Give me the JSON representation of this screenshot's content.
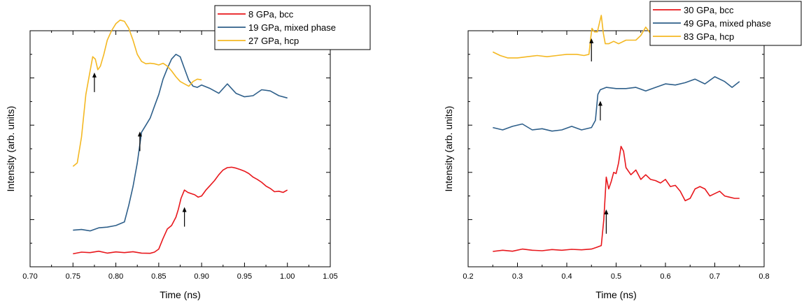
{
  "chart_data": [
    {
      "type": "line",
      "xlabel": "Time (ns)",
      "ylabel": "Intensity (arb. units)",
      "xlim": [
        0.7,
        1.05
      ],
      "ylim": [
        0,
        10
      ],
      "xticks": [
        "0.70",
        "0.75",
        "0.80",
        "0.85",
        "0.90",
        "0.95",
        "1.00",
        "1.05"
      ],
      "y_tick_labels_shown": false,
      "legend_position": "top-right",
      "series": [
        {
          "name": "8 GPa, bcc",
          "color": "#e8171c",
          "x": [
            0.75,
            0.76,
            0.77,
            0.78,
            0.79,
            0.8,
            0.81,
            0.82,
            0.83,
            0.84,
            0.845,
            0.85,
            0.855,
            0.86,
            0.865,
            0.87,
            0.873,
            0.876,
            0.88,
            0.884,
            0.888,
            0.892,
            0.896,
            0.9,
            0.905,
            0.91,
            0.915,
            0.92,
            0.925,
            0.93,
            0.935,
            0.94,
            0.945,
            0.95,
            0.955,
            0.96,
            0.965,
            0.97,
            0.975,
            0.98,
            0.985,
            0.99,
            0.995,
            1.0
          ],
          "y": [
            0.55,
            0.62,
            0.6,
            0.66,
            0.58,
            0.63,
            0.6,
            0.64,
            0.58,
            0.57,
            0.62,
            0.75,
            1.2,
            1.6,
            1.75,
            2.1,
            2.45,
            2.9,
            3.25,
            3.15,
            3.1,
            3.05,
            2.95,
            3.0,
            3.25,
            3.45,
            3.65,
            3.9,
            4.1,
            4.2,
            4.22,
            4.18,
            4.12,
            4.05,
            3.95,
            3.8,
            3.7,
            3.58,
            3.42,
            3.32,
            3.18,
            3.2,
            3.15,
            3.25
          ]
        },
        {
          "name": "19 GPa, mixed phase",
          "color": "#2e5f8a",
          "x": [
            0.75,
            0.76,
            0.77,
            0.78,
            0.79,
            0.8,
            0.81,
            0.815,
            0.82,
            0.825,
            0.83,
            0.835,
            0.84,
            0.845,
            0.85,
            0.855,
            0.86,
            0.865,
            0.87,
            0.875,
            0.88,
            0.885,
            0.89,
            0.895,
            0.9,
            0.91,
            0.92,
            0.93,
            0.94,
            0.95,
            0.96,
            0.97,
            0.98,
            0.99,
            1.0
          ],
          "y": [
            1.55,
            1.58,
            1.52,
            1.65,
            1.68,
            1.75,
            1.9,
            2.6,
            3.4,
            4.4,
            5.7,
            6.0,
            6.3,
            6.8,
            7.3,
            7.95,
            8.4,
            8.8,
            9.0,
            8.9,
            8.4,
            7.9,
            7.65,
            7.6,
            7.7,
            7.55,
            7.35,
            7.75,
            7.35,
            7.2,
            7.25,
            7.5,
            7.45,
            7.25,
            7.15
          ]
        },
        {
          "name": "27 GPa, hcp",
          "color": "#f4b822",
          "x": [
            0.75,
            0.755,
            0.76,
            0.765,
            0.77,
            0.773,
            0.776,
            0.779,
            0.782,
            0.786,
            0.79,
            0.795,
            0.8,
            0.805,
            0.81,
            0.815,
            0.82,
            0.825,
            0.83,
            0.835,
            0.84,
            0.845,
            0.85,
            0.855,
            0.86,
            0.865,
            0.87,
            0.875,
            0.88,
            0.885,
            0.89,
            0.895,
            0.9
          ],
          "y": [
            4.25,
            4.4,
            5.5,
            7.3,
            8.3,
            8.9,
            8.8,
            8.35,
            8.5,
            9.0,
            9.6,
            10.0,
            10.3,
            10.45,
            10.4,
            10.1,
            9.6,
            9.0,
            8.7,
            8.6,
            8.62,
            8.6,
            8.55,
            8.62,
            8.5,
            8.3,
            8.05,
            7.85,
            7.75,
            7.65,
            7.85,
            7.95,
            7.92
          ]
        }
      ],
      "annotations": [
        {
          "type": "arrow",
          "x": 0.775,
          "y_tail": 7.4,
          "y_head": 8.2
        },
        {
          "type": "arrow",
          "x": 0.828,
          "y_tail": 4.9,
          "y_head": 5.7
        },
        {
          "type": "arrow",
          "x": 0.88,
          "y_tail": 1.7,
          "y_head": 2.5
        }
      ]
    },
    {
      "type": "line",
      "xlabel": "Time (ns)",
      "ylabel": "Intensity (arb. units)",
      "xlim": [
        0.2,
        0.8
      ],
      "ylim": [
        0,
        10
      ],
      "xticks": [
        "0.2",
        "0.3",
        "0.4",
        "0.5",
        "0.6",
        "0.7",
        "0.8"
      ],
      "y_tick_labels_shown": false,
      "legend_position": "top-right",
      "series": [
        {
          "name": "30 GPa, bcc",
          "color": "#e8171c",
          "x": [
            0.25,
            0.27,
            0.29,
            0.31,
            0.33,
            0.35,
            0.37,
            0.39,
            0.41,
            0.43,
            0.45,
            0.46,
            0.47,
            0.475,
            0.48,
            0.485,
            0.49,
            0.495,
            0.5,
            0.505,
            0.51,
            0.515,
            0.52,
            0.53,
            0.54,
            0.55,
            0.56,
            0.57,
            0.58,
            0.59,
            0.6,
            0.61,
            0.62,
            0.63,
            0.64,
            0.65,
            0.66,
            0.67,
            0.68,
            0.69,
            0.7,
            0.71,
            0.72,
            0.73,
            0.74,
            0.75
          ],
          "y": [
            0.65,
            0.7,
            0.66,
            0.75,
            0.7,
            0.68,
            0.73,
            0.7,
            0.74,
            0.72,
            0.75,
            0.82,
            0.9,
            2.0,
            3.8,
            3.3,
            3.6,
            4.0,
            3.95,
            4.4,
            5.1,
            4.9,
            4.2,
            3.9,
            4.1,
            3.7,
            3.9,
            3.7,
            3.65,
            3.55,
            3.7,
            3.4,
            3.45,
            3.2,
            2.8,
            2.9,
            3.3,
            3.4,
            3.3,
            3.0,
            3.1,
            3.2,
            3.0,
            2.95,
            2.9,
            2.9
          ]
        },
        {
          "name": "49 GPa, mixed phase",
          "color": "#2e5f8a",
          "x": [
            0.25,
            0.27,
            0.29,
            0.31,
            0.33,
            0.35,
            0.37,
            0.39,
            0.41,
            0.43,
            0.45,
            0.458,
            0.463,
            0.468,
            0.48,
            0.5,
            0.52,
            0.54,
            0.56,
            0.58,
            0.6,
            0.62,
            0.64,
            0.66,
            0.68,
            0.7,
            0.72,
            0.735,
            0.75
          ],
          "y": [
            5.9,
            5.8,
            5.95,
            6.05,
            5.8,
            5.85,
            5.75,
            5.8,
            5.95,
            5.8,
            5.9,
            6.2,
            7.3,
            7.5,
            7.6,
            7.55,
            7.55,
            7.6,
            7.45,
            7.6,
            7.75,
            7.7,
            7.8,
            7.95,
            7.75,
            8.05,
            7.85,
            7.6,
            7.85
          ]
        },
        {
          "name": "83 GPa, hcp",
          "color": "#f4b822",
          "x": [
            0.25,
            0.265,
            0.28,
            0.3,
            0.32,
            0.34,
            0.36,
            0.38,
            0.4,
            0.42,
            0.435,
            0.445,
            0.448,
            0.451,
            0.456,
            0.462,
            0.467,
            0.47,
            0.474,
            0.478,
            0.485,
            0.495,
            0.505,
            0.52,
            0.54,
            0.55,
            0.56,
            0.58,
            0.6,
            0.62,
            0.64,
            0.66,
            0.68,
            0.7,
            0.72,
            0.74,
            0.75
          ],
          "y": [
            9.1,
            8.95,
            8.85,
            8.85,
            8.9,
            8.95,
            8.9,
            8.95,
            9.0,
            9.0,
            8.95,
            9.0,
            9.6,
            10.1,
            9.95,
            9.95,
            10.4,
            10.65,
            9.9,
            9.45,
            9.45,
            9.55,
            9.45,
            9.6,
            9.6,
            9.8,
            10.15,
            9.6,
            9.5,
            9.6,
            9.45,
            9.45,
            9.55,
            9.7,
            9.5,
            9.55,
            9.5
          ]
        }
      ],
      "annotations": [
        {
          "type": "arrow",
          "x": 0.45,
          "y_tail": 8.7,
          "y_head": 9.65
        },
        {
          "type": "arrow",
          "x": 0.468,
          "y_tail": 6.2,
          "y_head": 7.0
        },
        {
          "type": "arrow",
          "x": 0.48,
          "y_tail": 1.4,
          "y_head": 2.4
        }
      ]
    }
  ]
}
